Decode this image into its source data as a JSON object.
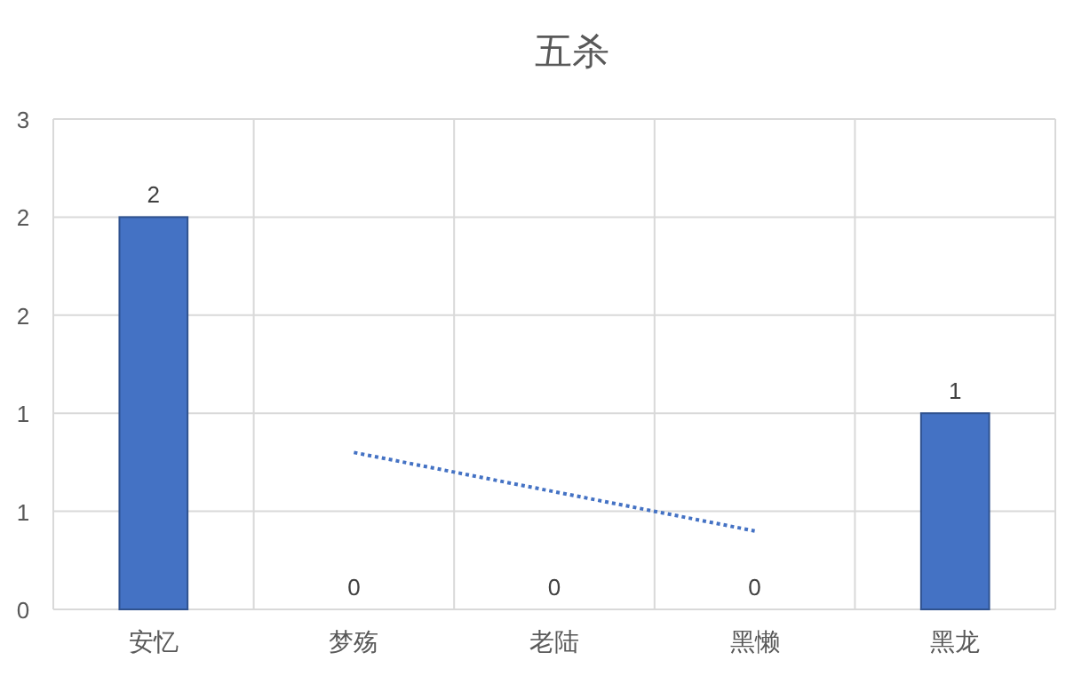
{
  "chart_data": {
    "type": "bar",
    "title": "五杀",
    "categories": [
      "安忆",
      "梦殇",
      "老陆",
      "黑懒",
      "黑龙"
    ],
    "series": [
      {
        "color": "#4472c4",
        "values": [
          2,
          0,
          0,
          0,
          1
        ],
        "value_labels": [
          "2",
          "0",
          "0",
          "0",
          "1"
        ]
      },
      {
        "type": "line",
        "color": "#4472c4",
        "line_style": "dotted",
        "values": [
          null,
          0.8,
          0.6,
          0.4,
          null
        ]
      }
    ],
    "ylim": [
      0,
      2.5
    ],
    "yticks": [
      0,
      {
        "value": 0.5,
        "label": "1"
      },
      1,
      {
        "value": 1.5,
        "label": "2"
      },
      2,
      {
        "value": 2.5,
        "label": "3"
      }
    ],
    "grid": true
  }
}
